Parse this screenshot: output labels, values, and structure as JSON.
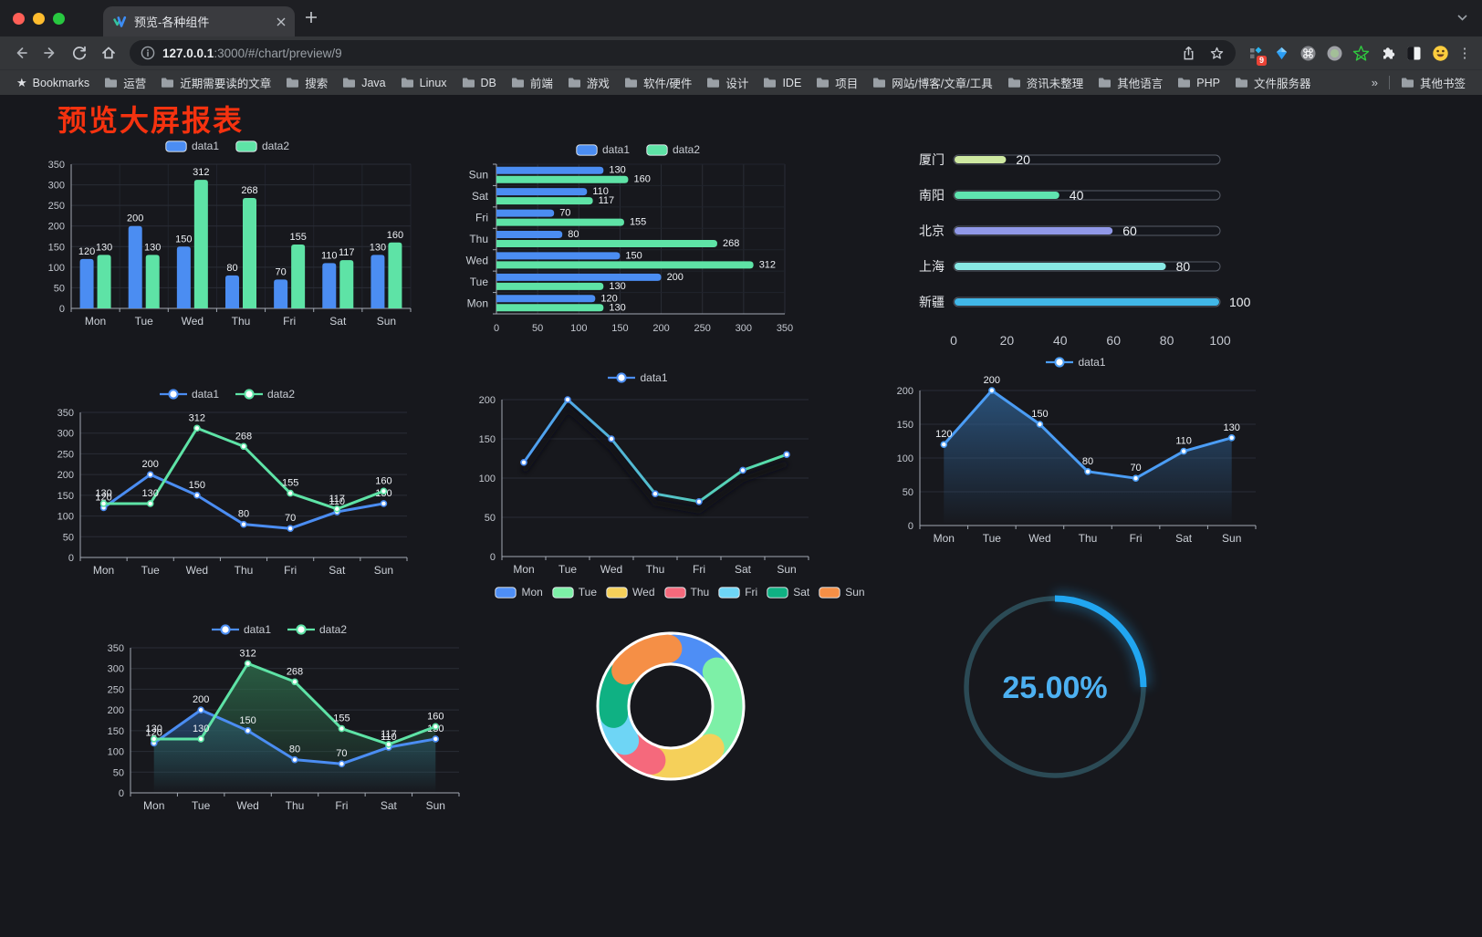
{
  "window": {
    "tab_title": "预览-各种组件",
    "url_host": "127.0.0.1",
    "url_rest": ":3000/#/chart/preview/9",
    "bookmarks_label": "Bookmarks",
    "bookmarks": [
      "运营",
      "近期需要读的文章",
      "搜索",
      "Java",
      "Linux",
      "DB",
      "前端",
      "游戏",
      "软件/硬件",
      "设计",
      "IDE",
      "项目",
      "网站/博客/文章/工具",
      "资讯未整理",
      "其他语言",
      "PHP",
      "文件服务器"
    ],
    "bookmarks_overflow": "»",
    "other_bookmarks": "其他书签",
    "extension_badge": "9"
  },
  "page": {
    "title": "预览大屏报表",
    "title_color": "#f5320f",
    "background": "#17181d"
  },
  "colors": {
    "data1_blue": "#4b8df2",
    "data2_green": "#5ee3a6",
    "axis_line": "#a3a9b3",
    "tick_text": "#c3c7cf",
    "grid_line": "#2a2d36",
    "value_label": "#eef1f5",
    "category_label": "#ccd1d8"
  },
  "chart_data": [
    {
      "id": "bar-vertical",
      "type": "bar",
      "categories": [
        "Mon",
        "Tue",
        "Wed",
        "Thu",
        "Fri",
        "Sat",
        "Sun"
      ],
      "series": [
        {
          "name": "data1",
          "color": "#4b8df2",
          "values": [
            120,
            200,
            150,
            80,
            70,
            110,
            130
          ]
        },
        {
          "name": "data2",
          "color": "#5ee3a6",
          "values": [
            130,
            130,
            312,
            268,
            155,
            117,
            160
          ]
        }
      ],
      "ylim": [
        0,
        350
      ],
      "ytick_step": 50,
      "legend_icon": "rect",
      "labels": true
    },
    {
      "id": "bar-horizontal",
      "type": "bar-h",
      "categories": [
        "Mon",
        "Tue",
        "Wed",
        "Thu",
        "Fri",
        "Sat",
        "Sun"
      ],
      "series": [
        {
          "name": "data1",
          "color": "#4b8df2",
          "values": [
            120,
            200,
            150,
            80,
            70,
            110,
            130
          ]
        },
        {
          "name": "data2",
          "color": "#5ee3a6",
          "values": [
            130,
            130,
            312,
            268,
            155,
            117,
            160
          ]
        }
      ],
      "xlim": [
        0,
        350
      ],
      "xtick_step": 50,
      "legend_icon": "rect",
      "labels": true
    },
    {
      "id": "capsule",
      "type": "capsule",
      "rows": [
        {
          "label": "厦门",
          "value": 20,
          "color": "#cfe9a2"
        },
        {
          "label": "南阳",
          "value": 40,
          "color": "#5fe3b0"
        },
        {
          "label": "北京",
          "value": 60,
          "color": "#9098e8"
        },
        {
          "label": "上海",
          "value": 80,
          "color": "#88e8e4"
        },
        {
          "label": "新疆",
          "value": 100,
          "color": "#41b7e8"
        }
      ],
      "xlim": [
        0,
        100
      ],
      "xticks": [
        0,
        20,
        40,
        60,
        80,
        100
      ]
    },
    {
      "id": "line-two",
      "type": "line",
      "categories": [
        "Mon",
        "Tue",
        "Wed",
        "Thu",
        "Fri",
        "Sat",
        "Sun"
      ],
      "series": [
        {
          "name": "data1",
          "color": "#4b8df2",
          "values": [
            120,
            200,
            150,
            80,
            70,
            110,
            130
          ]
        },
        {
          "name": "data2",
          "color": "#5ee3a6",
          "values": [
            130,
            130,
            312,
            268,
            155,
            117,
            160
          ]
        }
      ],
      "ylim": [
        0,
        350
      ],
      "ytick_step": 50,
      "legend_icon": "line",
      "labels": true
    },
    {
      "id": "line-gradient",
      "type": "line",
      "categories": [
        "Mon",
        "Tue",
        "Wed",
        "Thu",
        "Fri",
        "Sat",
        "Sun"
      ],
      "series": [
        {
          "name": "data1",
          "color": "#4b8df2",
          "gradient": [
            "#4f9df2",
            "#58e2a6"
          ],
          "values": [
            120,
            200,
            150,
            80,
            70,
            110,
            130
          ]
        }
      ],
      "ylim": [
        0,
        200
      ],
      "ytick_step": 50,
      "legend_icon": "line",
      "labels": false,
      "shadow": true
    },
    {
      "id": "area-blue",
      "type": "line",
      "categories": [
        "Mon",
        "Tue",
        "Wed",
        "Thu",
        "Fri",
        "Sat",
        "Sun"
      ],
      "series": [
        {
          "name": "data1",
          "color": "#4b9df5",
          "area_from": "#2e5e8e",
          "values": [
            120,
            200,
            150,
            80,
            70,
            110,
            130
          ]
        }
      ],
      "ylim": [
        0,
        200
      ],
      "ytick_step": 50,
      "legend_icon": "line",
      "labels": true
    },
    {
      "id": "area-two",
      "type": "line",
      "categories": [
        "Mon",
        "Tue",
        "Wed",
        "Thu",
        "Fri",
        "Sat",
        "Sun"
      ],
      "series": [
        {
          "name": "data1",
          "color": "#4b8df2",
          "area_from": "#28507e",
          "values": [
            120,
            200,
            150,
            80,
            70,
            110,
            130
          ]
        },
        {
          "name": "data2",
          "color": "#5ee3a6",
          "area_from": "#2e6e4c",
          "values": [
            130,
            130,
            312,
            268,
            155,
            117,
            160
          ]
        }
      ],
      "ylim": [
        0,
        350
      ],
      "ytick_step": 50,
      "legend_icon": "line",
      "labels": true
    },
    {
      "id": "pie-donut",
      "type": "pie",
      "slices": [
        {
          "label": "Mon",
          "value": 120,
          "color": "#4e8ef5"
        },
        {
          "label": "Tue",
          "value": 200,
          "color": "#7df0a7"
        },
        {
          "label": "Wed",
          "value": 150,
          "color": "#f5d05a"
        },
        {
          "label": "Thu",
          "value": 80,
          "color": "#f5697c"
        },
        {
          "label": "Fri",
          "value": 70,
          "color": "#6ed5f5"
        },
        {
          "label": "Sat",
          "value": 110,
          "color": "#0fb183"
        },
        {
          "label": "Sun",
          "value": 130,
          "color": "#f58f46"
        }
      ],
      "legend_icon": "rect"
    },
    {
      "id": "gauge",
      "type": "gauge",
      "value_percent": 25,
      "display": "25.00%",
      "color": "#21a6f1",
      "track_color": "#2b4a55",
      "text_color": "#4db1f2"
    }
  ]
}
